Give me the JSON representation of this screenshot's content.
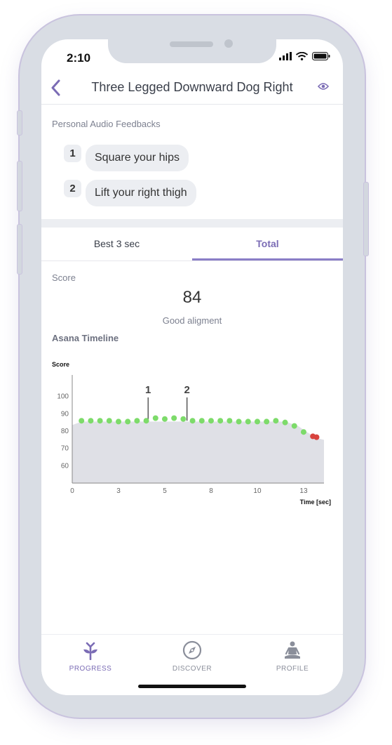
{
  "status": {
    "time": "2:10"
  },
  "header": {
    "title": "Three Legged Downward Dog Right"
  },
  "feedback": {
    "label": "Personal Audio Feedbacks",
    "items": [
      {
        "num": "1",
        "text": "Square your hips"
      },
      {
        "num": "2",
        "text": "Lift your right thigh"
      }
    ]
  },
  "tabs": [
    {
      "label": "Best 3 sec"
    },
    {
      "label": "Total"
    }
  ],
  "score": {
    "label": "Score",
    "value": "84",
    "description": "Good aligment"
  },
  "timeline": {
    "label": "Asana Timeline"
  },
  "chart_data": {
    "type": "scatter",
    "ylabel": "Score",
    "xlabel": "Time [sec]",
    "ylim": [
      50,
      110
    ],
    "xlim": [
      0,
      13.6
    ],
    "yticks": [
      60,
      70,
      80,
      90,
      100
    ],
    "xtick_labels": [
      {
        "label": "0",
        "x": 0
      },
      {
        "label": "3",
        "x": 2.5
      },
      {
        "label": "5",
        "x": 5.0
      },
      {
        "label": "8",
        "x": 7.5
      },
      {
        "label": "10",
        "x": 10.0
      },
      {
        "label": "13",
        "x": 12.5
      }
    ],
    "area_baseline": [
      [
        0,
        83.5
      ],
      [
        0.5,
        85.5
      ],
      [
        11.5,
        85.5
      ],
      [
        12.2,
        83
      ],
      [
        12.6,
        80
      ],
      [
        13.2,
        76
      ],
      [
        13.6,
        75
      ]
    ],
    "points": [
      {
        "x": 0.5,
        "y": 86
      },
      {
        "x": 1.0,
        "y": 86
      },
      {
        "x": 1.5,
        "y": 86
      },
      {
        "x": 2.0,
        "y": 86
      },
      {
        "x": 2.5,
        "y": 85.5
      },
      {
        "x": 3.0,
        "y": 85.5
      },
      {
        "x": 3.5,
        "y": 86
      },
      {
        "x": 4.0,
        "y": 86
      },
      {
        "x": 4.5,
        "y": 87.5
      },
      {
        "x": 5.0,
        "y": 87
      },
      {
        "x": 5.5,
        "y": 87.5
      },
      {
        "x": 6.0,
        "y": 87
      },
      {
        "x": 6.5,
        "y": 86
      },
      {
        "x": 7.0,
        "y": 86
      },
      {
        "x": 7.5,
        "y": 86
      },
      {
        "x": 8.0,
        "y": 86
      },
      {
        "x": 8.5,
        "y": 86
      },
      {
        "x": 9.0,
        "y": 85.5
      },
      {
        "x": 9.5,
        "y": 85.5
      },
      {
        "x": 10.0,
        "y": 85.5
      },
      {
        "x": 10.5,
        "y": 85.5
      },
      {
        "x": 11.0,
        "y": 86
      },
      {
        "x": 11.5,
        "y": 85
      },
      {
        "x": 12.0,
        "y": 83
      },
      {
        "x": 12.5,
        "y": 79.5
      },
      {
        "x": 13.0,
        "y": 77
      },
      {
        "x": 13.2,
        "y": 76.5
      }
    ],
    "markers": [
      {
        "label": "1",
        "x": 4.1
      },
      {
        "label": "2",
        "x": 6.2
      }
    ],
    "colors": {
      "good": "#7ddb6a",
      "bad": "#d8433e",
      "area": "#dfe0e6",
      "axis": "#888888"
    }
  },
  "nav": [
    {
      "label": "PROGRESS",
      "icon": "sprout-icon",
      "active": true
    },
    {
      "label": "DISCOVER",
      "icon": "compass-icon",
      "active": false
    },
    {
      "label": "PROFILE",
      "icon": "meditation-figure-icon",
      "active": false
    }
  ],
  "colors": {
    "accent": "#7b6cb5",
    "inactive": "#8a8e9a"
  }
}
